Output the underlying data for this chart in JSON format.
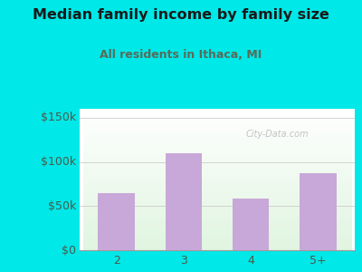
{
  "title": "Median family income by family size",
  "subtitle": "All residents in Ithaca, MI",
  "categories": [
    "2",
    "3",
    "4",
    "5+"
  ],
  "values": [
    65000,
    110000,
    58000,
    87000
  ],
  "bar_color": "#c8a8d8",
  "title_color": "#1a1a1a",
  "subtitle_color": "#5a6a5a",
  "outer_bg_color": "#00e8e8",
  "ylabel_ticks": [
    0,
    50000,
    100000,
    150000
  ],
  "ylabel_labels": [
    "$0",
    "$50k",
    "$100k",
    "$150k"
  ],
  "ylim": [
    0,
    160000
  ],
  "watermark": "City-Data.com",
  "tick_color": "#4a5a4a",
  "grid_color": "#cccccc"
}
